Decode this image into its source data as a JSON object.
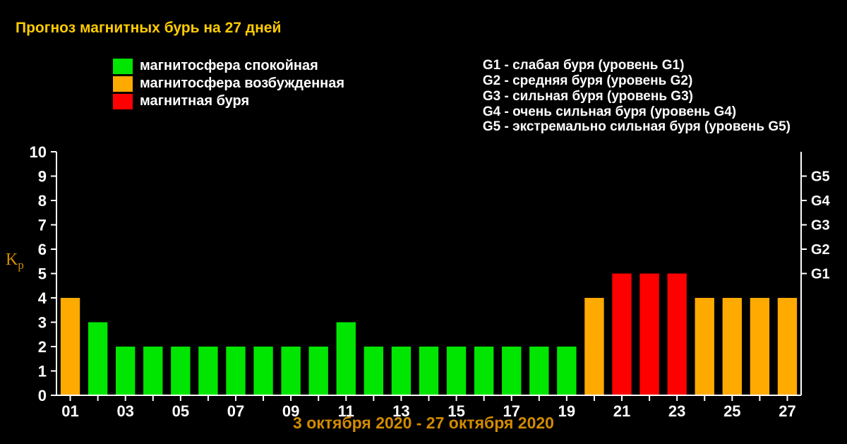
{
  "title": "Прогноз магнитных бурь на 27 дней",
  "subtitle": "3 октября 2020 - 27 октября 2020",
  "legend_left": [
    {
      "color": "#00e600",
      "label": "магнитосфера спокойная"
    },
    {
      "color": "#ffaa00",
      "label": "магнитосфера возбужденная"
    },
    {
      "color": "#ff0000",
      "label": "магнитная буря"
    }
  ],
  "legend_right": [
    "G1 - слабая буря (уровень G1)",
    "G2 - средняя буря (уровень G2)",
    "G3 - сильная буря (уровень G3)",
    "G4 - очень сильная буря (уровень G4)",
    "G5 - экстремально сильная буря (уровень G5)"
  ],
  "y_axis_label": "Kp",
  "chart": {
    "type": "bar",
    "background_color": "#000000",
    "axis_color": "#ffffff",
    "tick_label_color": "#ffffff",
    "subtitle_color": "#d28b00",
    "title_color": "#ffcc00",
    "ylim": [
      0,
      10
    ],
    "ytick_step": 1,
    "yticks": [
      0,
      1,
      2,
      3,
      4,
      5,
      6,
      7,
      8,
      9,
      10
    ],
    "bar_width_ratio": 0.7,
    "tick_fontsize": 22,
    "g_labels": [
      {
        "y": 5,
        "label": "G1"
      },
      {
        "y": 6,
        "label": "G2"
      },
      {
        "y": 7,
        "label": "G3"
      },
      {
        "y": 8,
        "label": "G4"
      },
      {
        "y": 9,
        "label": "G5"
      }
    ],
    "x_labels": [
      "01",
      "",
      "03",
      "",
      "05",
      "",
      "07",
      "",
      "09",
      "",
      "11",
      "",
      "13",
      "",
      "15",
      "",
      "17",
      "",
      "19",
      "",
      "21",
      "",
      "23",
      "",
      "25",
      "",
      "27"
    ],
    "values": [
      4,
      3,
      2,
      2,
      2,
      2,
      2,
      2,
      2,
      2,
      3,
      2,
      2,
      2,
      2,
      2,
      2,
      2,
      2,
      4,
      5,
      5,
      5,
      4,
      4,
      4,
      4
    ],
    "colors": [
      "#ffaa00",
      "#00e600",
      "#00e600",
      "#00e600",
      "#00e600",
      "#00e600",
      "#00e600",
      "#00e600",
      "#00e600",
      "#00e600",
      "#00e600",
      "#00e600",
      "#00e600",
      "#00e600",
      "#00e600",
      "#00e600",
      "#00e600",
      "#00e600",
      "#00e600",
      "#ffaa00",
      "#ff0000",
      "#ff0000",
      "#ff0000",
      "#ffaa00",
      "#ffaa00",
      "#ffaa00",
      "#ffaa00"
    ]
  }
}
